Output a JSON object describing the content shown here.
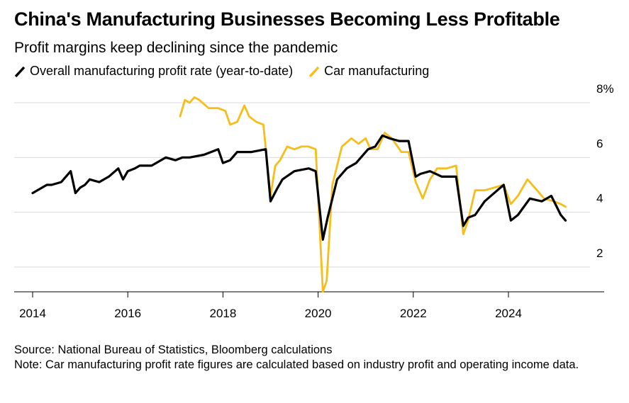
{
  "title": "China's Manufacturing Businesses Becoming Less Profitable",
  "subtitle": "Profit margins keep declining since the pandemic",
  "source": "Source: National Bureau of Statistics, Bloomberg calculations",
  "note": "Note: Car manufacturing profit rate figures are calculated based on industry profit and operating income data.",
  "chart_data": {
    "type": "line",
    "title": "China's Manufacturing Businesses Becoming Less Profitable",
    "xlabel": "",
    "ylabel": "",
    "xlim": [
      2014,
      2025.9
    ],
    "ylim": [
      1.2,
      8.8
    ],
    "y_ticks": [
      2,
      4,
      6,
      8
    ],
    "y_tick_labels": [
      "2",
      "4",
      "6",
      "8%"
    ],
    "x_ticks": [
      2014,
      2016,
      2018,
      2020,
      2022,
      2024
    ],
    "x_tick_labels": [
      "2014",
      "2016",
      "2018",
      "2020",
      "2022",
      "2024"
    ],
    "legend_position": "top-left",
    "grid": "horizontal",
    "series": [
      {
        "name": "Overall manufacturing profit rate (year-to-date)",
        "color": "#000000",
        "x": [
          2014.0,
          2014.1,
          2014.2,
          2014.3,
          2014.4,
          2014.6,
          2014.8,
          2014.9,
          2015.0,
          2015.1,
          2015.2,
          2015.4,
          2015.6,
          2015.8,
          2015.9,
          2016.0,
          2016.15,
          2016.25,
          2016.5,
          2016.8,
          2017.0,
          2017.15,
          2017.3,
          2017.6,
          2017.9,
          2018.0,
          2018.15,
          2018.3,
          2018.6,
          2018.9,
          2019.0,
          2019.15,
          2019.25,
          2019.5,
          2019.8,
          2019.95,
          2020.1,
          2020.2,
          2020.4,
          2020.6,
          2020.8,
          2020.9,
          2021.05,
          2021.2,
          2021.35,
          2021.5,
          2021.7,
          2021.9,
          2022.05,
          2022.15,
          2022.35,
          2022.6,
          2022.9,
          2023.05,
          2023.15,
          2023.3,
          2023.5,
          2023.7,
          2023.9,
          2024.05,
          2024.2,
          2024.45,
          2024.7,
          2024.9,
          2025.1,
          2025.2
        ],
        "values": [
          4.7,
          4.8,
          4.9,
          5.0,
          5.0,
          5.1,
          5.5,
          4.7,
          4.9,
          5.0,
          5.2,
          5.1,
          5.3,
          5.6,
          5.2,
          5.5,
          5.6,
          5.7,
          5.7,
          6.0,
          5.9,
          6.0,
          6.0,
          6.1,
          6.3,
          5.8,
          5.9,
          6.2,
          6.2,
          6.3,
          4.4,
          4.9,
          5.2,
          5.5,
          5.6,
          5.5,
          3.0,
          3.8,
          5.2,
          5.6,
          5.8,
          6.0,
          6.3,
          6.4,
          6.8,
          6.7,
          6.6,
          6.6,
          5.3,
          5.4,
          5.5,
          5.3,
          5.3,
          3.5,
          3.8,
          3.9,
          4.4,
          4.7,
          5.0,
          3.7,
          3.9,
          4.5,
          4.4,
          4.6,
          3.9,
          3.7
        ]
      },
      {
        "name": "Car manufacturing",
        "color": "#f5be1b",
        "x": [
          2017.1,
          2017.2,
          2017.3,
          2017.4,
          2017.5,
          2017.7,
          2017.9,
          2018.05,
          2018.15,
          2018.3,
          2018.45,
          2018.55,
          2018.7,
          2018.85,
          2019.0,
          2019.1,
          2019.2,
          2019.35,
          2019.5,
          2019.65,
          2019.8,
          2019.95,
          2020.1,
          2020.18,
          2020.3,
          2020.5,
          2020.7,
          2020.85,
          2021.0,
          2021.1,
          2021.25,
          2021.4,
          2021.55,
          2021.75,
          2021.9,
          2022.05,
          2022.2,
          2022.35,
          2022.5,
          2022.7,
          2022.9,
          2023.05,
          2023.15,
          2023.3,
          2023.5,
          2023.7,
          2023.9,
          2024.05,
          2024.2,
          2024.4,
          2024.6,
          2024.75,
          2024.95,
          2025.1,
          2025.2
        ],
        "values": [
          7.5,
          8.1,
          8.0,
          8.2,
          8.1,
          7.8,
          7.8,
          7.7,
          7.2,
          7.3,
          7.9,
          7.5,
          7.3,
          7.2,
          4.6,
          5.7,
          5.9,
          6.4,
          6.3,
          6.4,
          6.4,
          6.3,
          1.1,
          1.5,
          5.0,
          6.4,
          6.7,
          6.5,
          6.7,
          6.3,
          6.3,
          6.9,
          6.7,
          6.2,
          6.2,
          5.1,
          4.5,
          5.2,
          5.6,
          5.6,
          5.7,
          3.2,
          3.7,
          4.8,
          4.8,
          4.9,
          5.0,
          4.3,
          4.6,
          5.2,
          4.8,
          4.5,
          4.4,
          4.3,
          4.2
        ]
      }
    ]
  }
}
